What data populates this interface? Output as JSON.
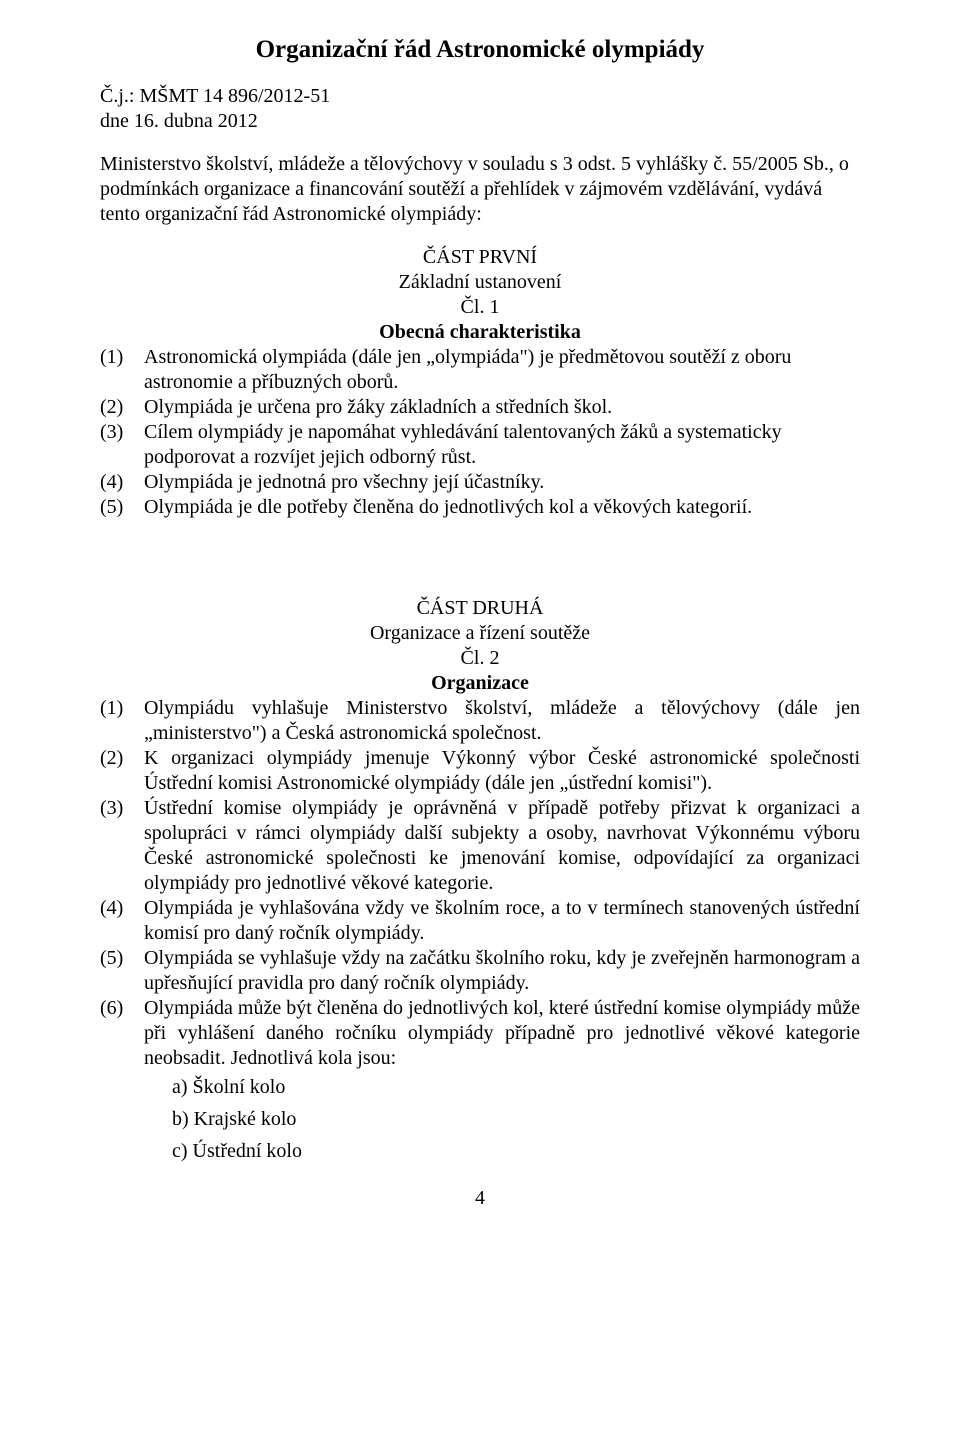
{
  "title": "Organizační řád Astronomické olympiády",
  "ref": {
    "line1": "Č.j.: MŠMT 14 896/2012-51",
    "line2": "dne 16. dubna 2012"
  },
  "intro": "Ministerstvo školství, mládeže a tělovýchovy v souladu s 3 odst. 5 vyhlášky č. 55/2005 Sb., o podmínkách organizace a financování soutěží a přehlídek v zájmovém vzdělávání, vydává tento organizační řád Astronomické olympiády:",
  "part1": {
    "heading": "ČÁST PRVNÍ",
    "sub": "Základní ustanovení",
    "article": "Čl. 1",
    "article_title": "Obecná charakteristika",
    "items": [
      {
        "n": "(1)",
        "t": "Astronomická olympiáda (dále jen „olympiáda\") je předmětovou soutěží z oboru astronomie a příbuzných oborů."
      },
      {
        "n": "(2)",
        "t": "Olympiáda je určena pro žáky základních a středních škol."
      },
      {
        "n": "(3)",
        "t": "Cílem olympiády je napomáhat vyhledávání talentovaných žáků a systematicky podporovat a rozvíjet jejich odborný růst."
      },
      {
        "n": "(4)",
        "t": "Olympiáda je jednotná pro všechny její účastníky."
      },
      {
        "n": "(5)",
        "t": "Olympiáda je dle potřeby členěna do jednotlivých kol a věkových kategorií."
      }
    ]
  },
  "part2": {
    "heading": "ČÁST DRUHÁ",
    "sub": "Organizace a řízení soutěže",
    "article": "Čl. 2",
    "article_title": "Organizace",
    "items": [
      {
        "n": "(1)",
        "t": "Olympiádu vyhlašuje Ministerstvo školství, mládeže a tělovýchovy (dále jen „ministerstvo\") a Česká astronomická společnost."
      },
      {
        "n": "(2)",
        "t": "K organizaci olympiády jmenuje Výkonný výbor České astronomické společnosti Ústřední komisi Astronomické olympiády (dále jen „ústřední komisi\")."
      },
      {
        "n": "(3)",
        "t": "Ústřední komise olympiády je oprávněná v případě potřeby přizvat k organizaci a spolupráci v rámci olympiády další subjekty a osoby, navrhovat Výkonnému výboru České astronomické společnosti ke jmenování komise, odpovídající za organizaci olympiády pro jednotlivé věkové kategorie."
      },
      {
        "n": "(4)",
        "t": "Olympiáda je vyhlašována vždy ve školním roce, a to v termínech stanovených ústřední komisí pro daný ročník olympiády."
      },
      {
        "n": "(5)",
        "t": "Olympiáda se vyhlašuje vždy na začátku školního roku, kdy je zveřejněn harmonogram a upřesňující pravidla pro daný ročník olympiády."
      },
      {
        "n": "(6)",
        "t": "Olympiáda může být členěna do jednotlivých kol, které ústřední komise olympiády může při vyhlášení daného ročníku olympiády případně pro jednotlivé věkové kategorie neobsadit. Jednotlivá kola jsou:"
      }
    ],
    "subitems": [
      "a) Školní kolo",
      "b) Krajské kolo",
      "c) Ústřední kolo"
    ]
  },
  "page_number": "4"
}
